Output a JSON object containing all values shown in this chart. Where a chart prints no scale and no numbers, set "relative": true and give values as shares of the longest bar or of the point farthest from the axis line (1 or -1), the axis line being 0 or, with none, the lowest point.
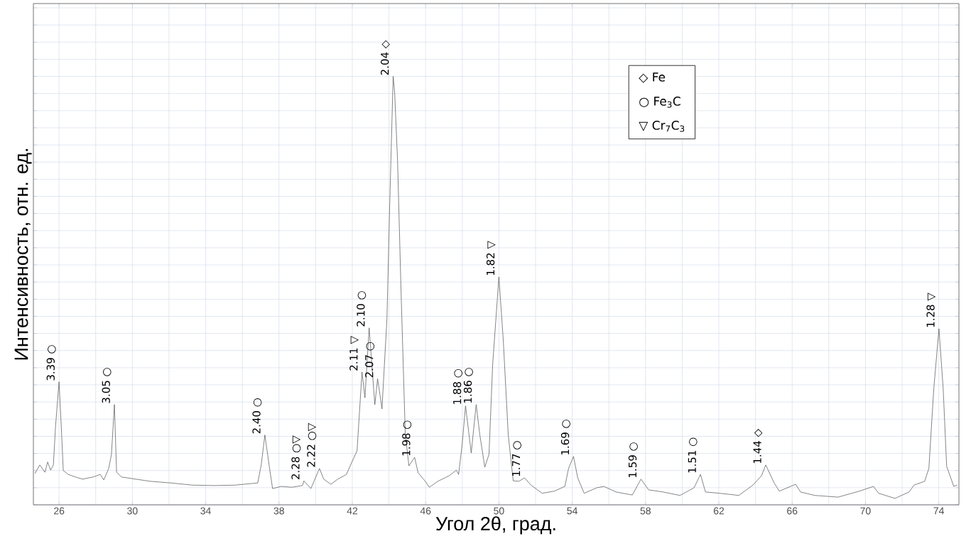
{
  "chart_data": {
    "type": "line",
    "relative": true,
    "xlabel": "Угол 2θ, град.",
    "ylabel": "Интенсивность, отн. ед.",
    "xlim": [
      24.6,
      75.1
    ],
    "xticks": [
      26,
      30,
      34,
      38,
      42,
      46,
      50,
      54,
      58,
      62,
      66,
      70,
      74
    ],
    "grid": true,
    "series": [
      {
        "color": "#505050",
        "x": [
          24.68,
          24.95,
          25.23,
          25.38,
          25.54,
          25.69,
          25.81,
          26.0,
          26.12,
          26.23,
          26.5,
          26.89,
          27.28,
          27.86,
          28.25,
          28.44,
          28.71,
          28.86,
          29.02,
          29.14,
          29.41,
          30.18,
          30.96,
          32.12,
          33.28,
          34.44,
          35.6,
          36.57,
          36.84,
          37.03,
          37.23,
          37.46,
          37.65,
          38.12,
          38.7,
          39.28,
          39.36,
          39.74,
          40.21,
          40.44,
          40.83,
          41.21,
          41.68,
          41.99,
          42.26,
          42.53,
          42.69,
          42.92,
          43.23,
          43.38,
          43.5,
          43.62,
          43.89,
          44.04,
          44.23,
          44.31,
          44.47,
          44.66,
          44.89,
          45.09,
          45.4,
          45.59,
          45.98,
          46.21,
          46.67,
          47.29,
          47.68,
          47.8,
          47.99,
          48.18,
          48.49,
          48.76,
          48.96,
          49.23,
          49.46,
          49.66,
          50.0,
          50.24,
          50.51,
          50.78,
          51.09,
          51.4,
          51.75,
          52.36,
          53.02,
          53.6,
          53.8,
          54.07,
          54.3,
          54.65,
          55.35,
          55.73,
          56.39,
          57.28,
          57.75,
          58.17,
          58.95,
          59.88,
          60.65,
          61.0,
          61.27,
          62.04,
          63.09,
          63.86,
          64.33,
          64.56,
          65.02,
          65.3,
          66.19,
          66.46,
          67.23,
          68.51,
          69.67,
          70.44,
          70.72,
          71.61,
          72.38,
          72.65,
          73.23,
          73.46,
          73.73,
          74.01,
          74.24,
          74.43,
          74.82,
          75.01
        ],
        "values": [
          0.073,
          0.093,
          0.076,
          0.1,
          0.081,
          0.093,
          0.184,
          0.287,
          0.184,
          0.08,
          0.071,
          0.065,
          0.06,
          0.065,
          0.071,
          0.058,
          0.085,
          0.118,
          0.234,
          0.076,
          0.065,
          0.06,
          0.055,
          0.051,
          0.046,
          0.045,
          0.046,
          0.05,
          0.051,
          0.093,
          0.163,
          0.093,
          0.038,
          0.043,
          0.041,
          0.045,
          0.056,
          0.038,
          0.085,
          0.06,
          0.048,
          0.06,
          0.071,
          0.101,
          0.126,
          0.31,
          0.25,
          0.413,
          0.234,
          0.294,
          0.26,
          0.224,
          0.433,
          0.698,
          1.0,
          0.964,
          0.804,
          0.499,
          0.167,
          0.091,
          0.111,
          0.075,
          0.055,
          0.041,
          0.055,
          0.068,
          0.081,
          0.071,
          0.139,
          0.231,
          0.121,
          0.234,
          0.163,
          0.088,
          0.118,
          0.328,
          0.532,
          0.383,
          0.163,
          0.056,
          0.055,
          0.063,
          0.046,
          0.027,
          0.032,
          0.043,
          0.085,
          0.113,
          0.063,
          0.027,
          0.04,
          0.043,
          0.03,
          0.023,
          0.06,
          0.035,
          0.03,
          0.022,
          0.04,
          0.071,
          0.03,
          0.027,
          0.022,
          0.046,
          0.068,
          0.093,
          0.051,
          0.032,
          0.048,
          0.03,
          0.022,
          0.018,
          0.032,
          0.043,
          0.027,
          0.015,
          0.03,
          0.046,
          0.055,
          0.085,
          0.272,
          0.411,
          0.272,
          0.09,
          0.043,
          0.046
        ]
      }
    ],
    "annotations": [
      {
        "text": "3.39 ○",
        "x": 26.0,
        "y": 0.287
      },
      {
        "text": "3.05 ○",
        "x": 29.02,
        "y": 0.234
      },
      {
        "text": "2.40 ○",
        "x": 37.23,
        "y": 0.163
      },
      {
        "text": "2.28 ○▽",
        "x": 39.36,
        "y": 0.056
      },
      {
        "text": "2.22 ○▽",
        "x": 40.21,
        "y": 0.085
      },
      {
        "text": "2.11 ▽",
        "x": 42.53,
        "y": 0.31
      },
      {
        "text": "2.10 ○",
        "x": 42.92,
        "y": 0.413
      },
      {
        "text": "2.07 ○",
        "x": 43.38,
        "y": 0.294
      },
      {
        "text": "2.04 ◇",
        "x": 44.23,
        "y": 1.0
      },
      {
        "text": "1.98 ○",
        "x": 45.4,
        "y": 0.111
      },
      {
        "text": "1.88 ○",
        "x": 48.18,
        "y": 0.231
      },
      {
        "text": "1.86 ○",
        "x": 48.76,
        "y": 0.234
      },
      {
        "text": "1.82 ▽",
        "x": 50.0,
        "y": 0.532
      },
      {
        "text": "1.77 ○",
        "x": 51.4,
        "y": 0.063
      },
      {
        "text": "1.69 ○",
        "x": 54.07,
        "y": 0.113
      },
      {
        "text": "1.59 ○",
        "x": 57.75,
        "y": 0.06
      },
      {
        "text": "1.51 ○",
        "x": 61.0,
        "y": 0.071
      },
      {
        "text": "1.44 ◇",
        "x": 64.56,
        "y": 0.093
      },
      {
        "text": "1.28 ▽",
        "x": 74.01,
        "y": 0.411
      },
      "◇  Fe",
      "○  Fe$_{3}$C",
      "▽  Cr$_{7}$C$_{3}$"
    ]
  }
}
